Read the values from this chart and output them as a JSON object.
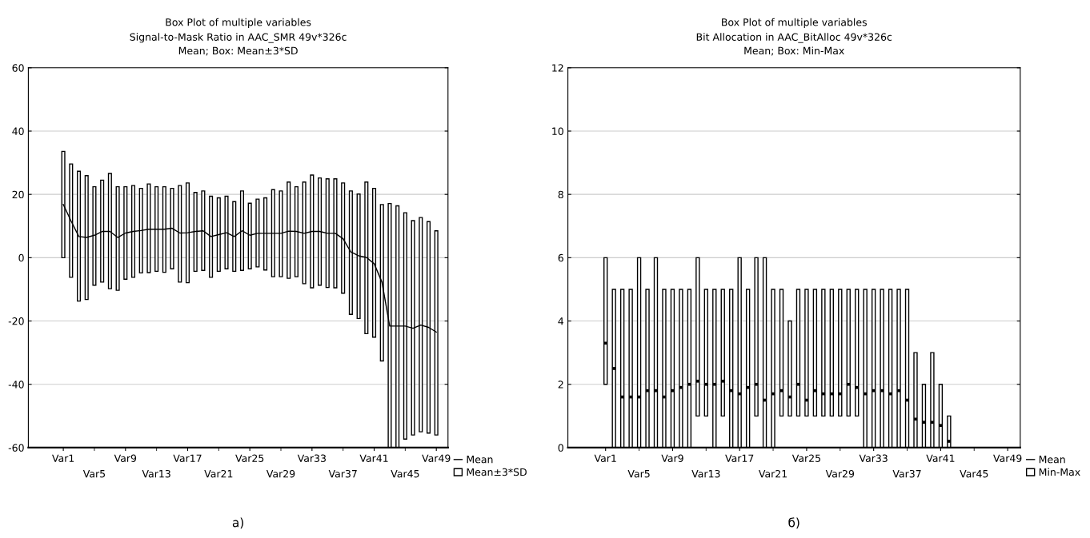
{
  "chart_data": [
    {
      "type": "bar",
      "title": "Box Plot of multiple variables",
      "subtitle": "Signal-to-Mask Ratio in AAC_SMR 49v*326c\nMean; Box: Mean±3*SD",
      "categories": [
        "Var1",
        null,
        null,
        null,
        "Var5",
        null,
        null,
        null,
        "Var9",
        null,
        null,
        null,
        "Var13",
        null,
        null,
        null,
        "Var17",
        null,
        null,
        null,
        "Var21",
        null,
        null,
        null,
        "Var25",
        null,
        null,
        null,
        "Var29",
        null,
        null,
        null,
        "Var33",
        null,
        null,
        null,
        "Var37",
        null,
        null,
        null,
        "Var41",
        null,
        null,
        null,
        "Var45",
        null,
        null,
        null,
        "Var49"
      ],
      "ylim": [
        -60,
        60
      ],
      "yticks": [
        -60,
        -40,
        -20,
        0,
        20,
        40,
        60
      ],
      "grid": "y",
      "legend": "bottom right",
      "annotations": [
        "а)"
      ],
      "series": [
        {
          "name": "Mean",
          "type": "line",
          "color": "#000000",
          "values": [
            16.8,
            11.6,
            6.7,
            6.4,
            7.1,
            8.3,
            8.3,
            6.4,
            7.8,
            8.3,
            8.6,
            9.0,
            9.0,
            9.0,
            9.3,
            7.8,
            7.9,
            8.3,
            8.5,
            6.7,
            7.3,
            7.9,
            6.7,
            8.5,
            7.1,
            7.7,
            7.7,
            7.7,
            7.7,
            8.4,
            8.3,
            7.7,
            8.3,
            8.3,
            7.7,
            7.7,
            6.0,
            1.8,
            0.6,
            0.1,
            -1.9,
            -7.7,
            -21.6,
            -21.6,
            -21.6,
            -22.3,
            -21.3,
            -22.0,
            -23.5
          ]
        },
        {
          "name": "Mean±3*SD",
          "color": "#ffffff",
          "base": [
            0,
            -6.2,
            -13.7,
            -13.2,
            -8.7,
            -7.7,
            -9.8,
            -10.3,
            -6.8,
            -6.2,
            -4.8,
            -4.7,
            -4.3,
            -4.6,
            -3.5,
            -7.7,
            -7.9,
            -4.3,
            -4.0,
            -6.2,
            -4.3,
            -3.5,
            -4.3,
            -4.0,
            -3.5,
            -2.9,
            -3.9,
            -6.0,
            -6.0,
            -6.5,
            -6.0,
            -8.2,
            -9.5,
            -8.7,
            -9.4,
            -9.5,
            -11.2,
            -17.9,
            -19.2,
            -24.0,
            -25.1,
            -32.6,
            -60,
            -60,
            -57.3,
            -56.0,
            -55.0,
            -55.4,
            -56.0
          ],
          "values": [
            33.6,
            35.8,
            41.0,
            39.1,
            31.1,
            32.2,
            36.4,
            32.7,
            29.2,
            29.0,
            26.7,
            28.0,
            26.7,
            27.0,
            25.4,
            30.5,
            31.5,
            24.9,
            25.1,
            25.6,
            23.2,
            22.9,
            22.0,
            25.1,
            20.7,
            21.4,
            22.8,
            27.5,
            27.1,
            30.4,
            28.4,
            32.1,
            35.6,
            33.9,
            34.3,
            34.4,
            34.8,
            39.0,
            39.3,
            47.9,
            47.0,
            49.4,
            77.1,
            76.4,
            71.5,
            67.7,
            67.7,
            66.8,
            64.5
          ]
        }
      ]
    },
    {
      "type": "bar",
      "title": "Box Plot of multiple variables",
      "subtitle": "Bit Allocation in AAC_BitAlloc 49v*326c\nMean; Box: Min-Max",
      "categories": [
        "Var1",
        null,
        null,
        null,
        "Var5",
        null,
        null,
        null,
        "Var9",
        null,
        null,
        null,
        "Var13",
        null,
        null,
        null,
        "Var17",
        null,
        null,
        null,
        "Var21",
        null,
        null,
        null,
        "Var25",
        null,
        null,
        null,
        "Var29",
        null,
        null,
        null,
        "Var33",
        null,
        null,
        null,
        "Var37",
        null,
        null,
        null,
        "Var41",
        null,
        null,
        null,
        "Var45",
        null,
        null,
        null,
        "Var49"
      ],
      "ylim": [
        0,
        12
      ],
      "yticks": [
        0,
        2,
        4,
        6,
        8,
        10,
        12
      ],
      "grid": "y",
      "legend": "bottom right",
      "annotations": [
        "б)"
      ],
      "series": [
        {
          "name": "Mean",
          "type": "scatter",
          "color": "#000000",
          "values": [
            3.3,
            2.5,
            1.6,
            1.6,
            1.6,
            1.8,
            1.8,
            1.6,
            1.8,
            1.9,
            2.0,
            2.1,
            2.0,
            2.0,
            2.1,
            1.8,
            1.7,
            1.9,
            2.0,
            1.5,
            1.7,
            1.8,
            1.6,
            2.0,
            1.5,
            1.8,
            1.7,
            1.7,
            1.7,
            2.0,
            1.9,
            1.7,
            1.8,
            1.8,
            1.7,
            1.8,
            1.5,
            0.9,
            0.8,
            0.8,
            0.7,
            0.2,
            null,
            null,
            null,
            null,
            null,
            null,
            null
          ]
        },
        {
          "name": "Min-Max",
          "color": "#ffffff",
          "base": [
            2,
            0,
            0,
            0,
            0,
            0,
            0,
            0,
            0,
            0,
            0,
            1,
            1,
            0,
            1,
            0,
            0,
            0,
            1,
            0,
            0,
            1,
            1,
            1,
            1,
            1,
            1,
            1,
            1,
            1,
            1,
            0,
            0,
            0,
            0,
            0,
            0,
            0,
            0,
            0,
            0,
            0,
            null,
            null,
            null,
            null,
            null,
            null,
            null
          ],
          "values": [
            4,
            5,
            5,
            5,
            6,
            5,
            6,
            5,
            5,
            5,
            5,
            5,
            4,
            5,
            4,
            5,
            6,
            5,
            5,
            6,
            5,
            4,
            3,
            4,
            4,
            4,
            4,
            4,
            4,
            4,
            4,
            5,
            5,
            5,
            5,
            5,
            5,
            3,
            2,
            3,
            2,
            1,
            null,
            null,
            null,
            null,
            null,
            null,
            null
          ]
        }
      ]
    }
  ]
}
